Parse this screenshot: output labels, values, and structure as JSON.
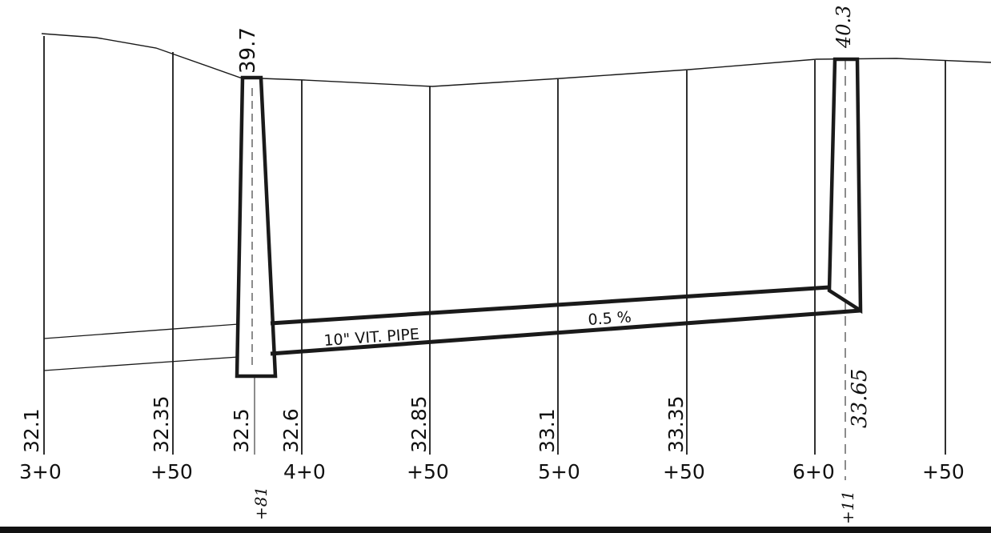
{
  "sheet": {
    "rim_elevations": [
      "39.7",
      "40.3"
    ],
    "pipe_label": "10\" VIT. PIPE",
    "slope_label": "0.5 %",
    "invert_note": "33.65",
    "station_offsets": [
      "+81",
      "+11"
    ],
    "grade_elevations": [
      "32.1",
      "32.35",
      "32.5",
      "32.6",
      "32.85",
      "33.1",
      "33.35"
    ],
    "stations": [
      "3+0",
      "+50",
      "4+0",
      "+50",
      "5+0",
      "+50",
      "6+0",
      "+50"
    ]
  }
}
